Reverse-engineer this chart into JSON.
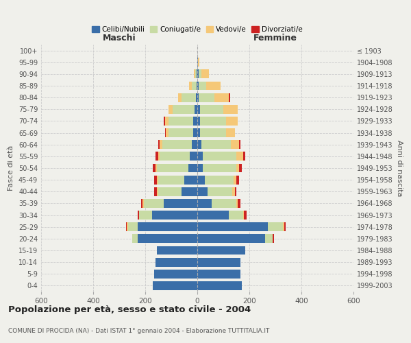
{
  "age_groups": [
    "0-4",
    "5-9",
    "10-14",
    "15-19",
    "20-24",
    "25-29",
    "30-34",
    "35-39",
    "40-44",
    "45-49",
    "50-54",
    "55-59",
    "60-64",
    "65-69",
    "70-74",
    "75-79",
    "80-84",
    "85-89",
    "90-94",
    "95-99",
    "100+"
  ],
  "birth_years": [
    "1999-2003",
    "1994-1998",
    "1989-1993",
    "1984-1988",
    "1979-1983",
    "1974-1978",
    "1969-1973",
    "1964-1968",
    "1959-1963",
    "1954-1958",
    "1949-1953",
    "1944-1948",
    "1939-1943",
    "1934-1938",
    "1929-1933",
    "1924-1928",
    "1919-1923",
    "1914-1918",
    "1909-1913",
    "1904-1908",
    "≤ 1903"
  ],
  "males": {
    "celibi": [
      170,
      165,
      160,
      155,
      230,
      230,
      175,
      130,
      60,
      50,
      35,
      30,
      20,
      15,
      15,
      10,
      5,
      2,
      2,
      0,
      0
    ],
    "coniugati": [
      0,
      0,
      0,
      0,
      20,
      35,
      50,
      75,
      90,
      100,
      120,
      115,
      115,
      95,
      95,
      85,
      55,
      20,
      5,
      0,
      0
    ],
    "vedovi": [
      0,
      0,
      0,
      0,
      0,
      5,
      0,
      5,
      5,
      5,
      5,
      5,
      10,
      10,
      15,
      15,
      15,
      10,
      5,
      0,
      0
    ],
    "divorziati": [
      0,
      0,
      0,
      0,
      0,
      5,
      5,
      5,
      10,
      10,
      10,
      10,
      5,
      5,
      5,
      0,
      0,
      0,
      0,
      0,
      0
    ]
  },
  "females": {
    "nubili": [
      170,
      165,
      165,
      185,
      260,
      270,
      120,
      55,
      40,
      30,
      20,
      20,
      15,
      10,
      10,
      10,
      5,
      5,
      5,
      2,
      0
    ],
    "coniugate": [
      0,
      0,
      0,
      0,
      30,
      60,
      55,
      95,
      95,
      110,
      130,
      130,
      115,
      100,
      100,
      90,
      60,
      30,
      10,
      0,
      0
    ],
    "vedove": [
      0,
      0,
      0,
      0,
      0,
      5,
      5,
      5,
      10,
      10,
      10,
      25,
      30,
      35,
      45,
      55,
      55,
      55,
      30,
      5,
      0
    ],
    "divorziate": [
      0,
      0,
      0,
      0,
      5,
      5,
      10,
      10,
      5,
      10,
      10,
      10,
      5,
      0,
      0,
      0,
      5,
      0,
      0,
      0,
      0
    ]
  },
  "colors": {
    "celibi": "#3a6ea8",
    "coniugati": "#c8dba4",
    "vedovi": "#f5c878",
    "divorziati": "#cc2222"
  },
  "title": "Popolazione per età, sesso e stato civile - 2004",
  "subtitle": "COMUNE DI PROCIDA (NA) - Dati ISTAT 1° gennaio 2004 - Elaborazione TUTTITALIA.IT",
  "xlabel_left": "Maschi",
  "xlabel_right": "Femmine",
  "ylabel_left": "Fasce di età",
  "ylabel_right": "Anni di nascita",
  "xlim": 600,
  "legend_labels": [
    "Celibi/Nubili",
    "Coniugati/e",
    "Vedovi/e",
    "Divorziati/e"
  ],
  "background_color": "#f0f0eb"
}
